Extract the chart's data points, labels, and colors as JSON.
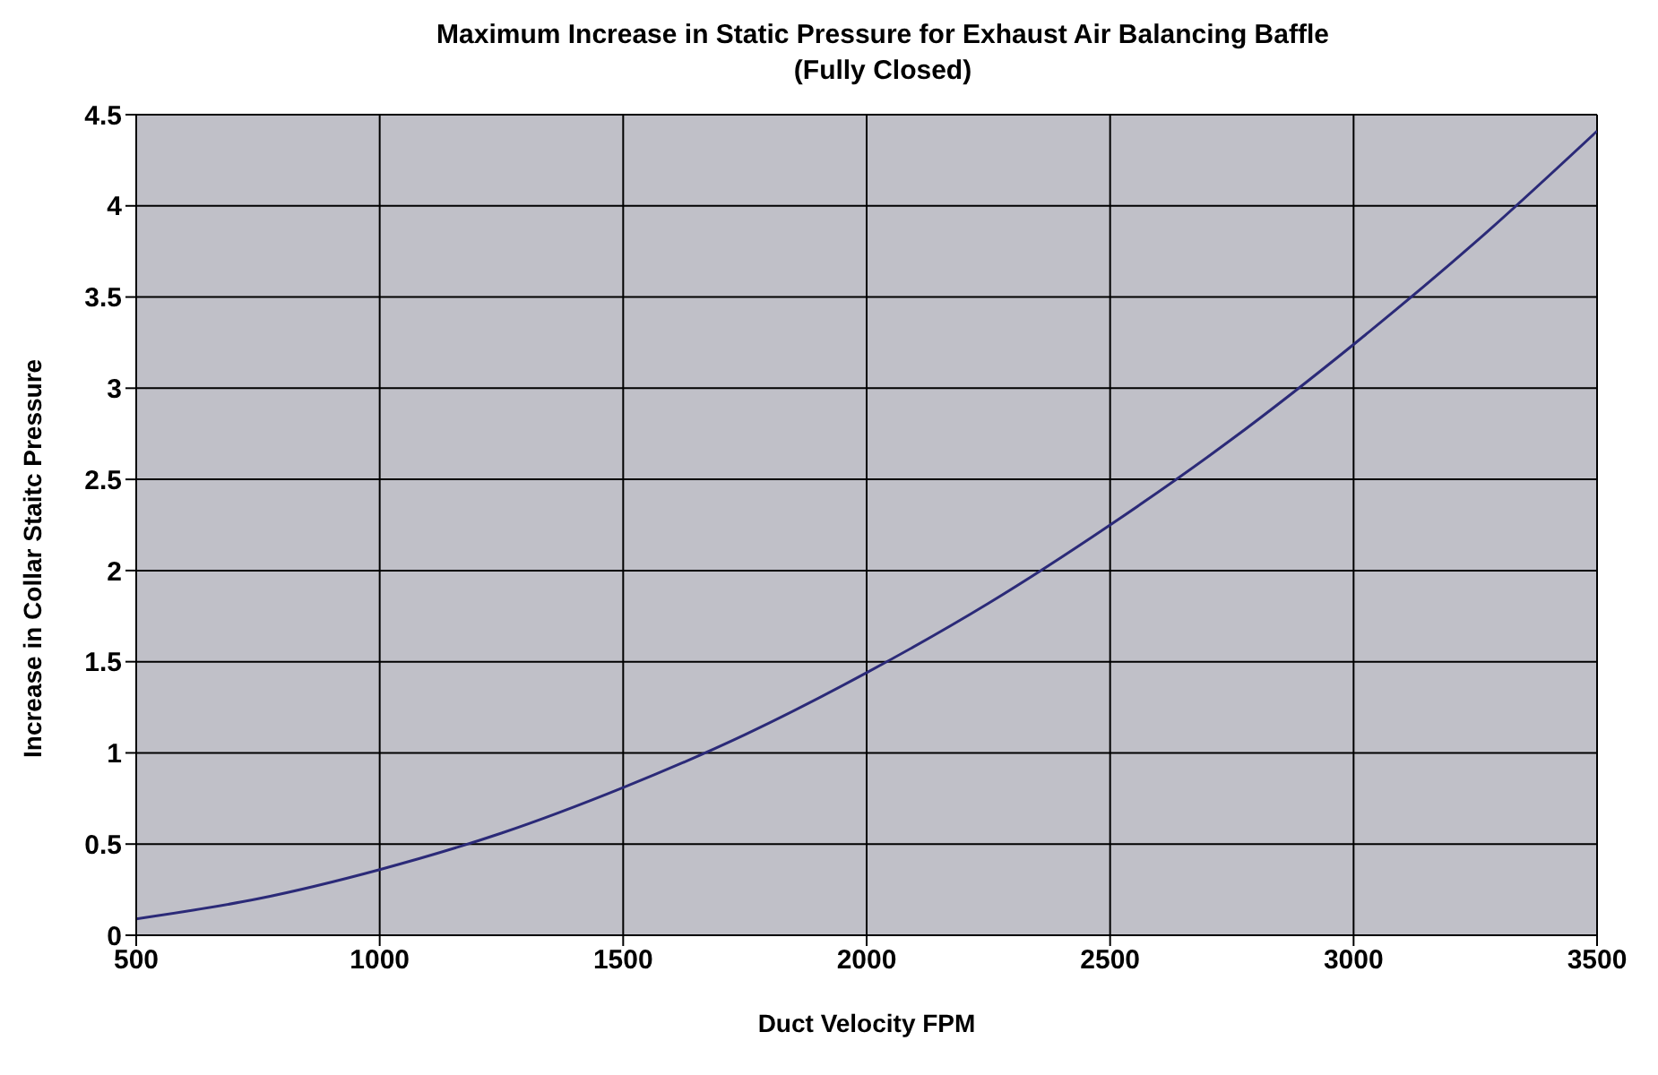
{
  "chart_data": {
    "type": "line",
    "title": "Maximum Increase in Static Pressure for Exhaust Air Balancing Baffle",
    "subtitle": "(Fully Closed)",
    "xlabel": "Duct Velocity FPM",
    "ylabel": "Increase in Collar Staitc Pressure",
    "x": [
      500,
      750,
      1000,
      1250,
      1500,
      1750,
      2000,
      2250,
      2500,
      2750,
      3000,
      3250,
      3500
    ],
    "series": [
      {
        "color": "#2b2a78",
        "values": [
          0.09,
          0.2,
          0.36,
          0.56,
          0.81,
          1.1,
          1.44,
          1.82,
          2.25,
          2.72,
          3.24,
          3.8,
          4.41
        ]
      }
    ],
    "xlim": [
      500,
      3500
    ],
    "xticks": [
      500,
      1000,
      1500,
      2000,
      2500,
      3000,
      3500
    ],
    "ylim": [
      0,
      4.5
    ],
    "yticks": [
      0,
      0.5,
      1,
      1.5,
      2,
      2.5,
      3,
      3.5,
      4,
      4.5
    ],
    "grid": true,
    "marker": "none",
    "line_style": "solid"
  }
}
